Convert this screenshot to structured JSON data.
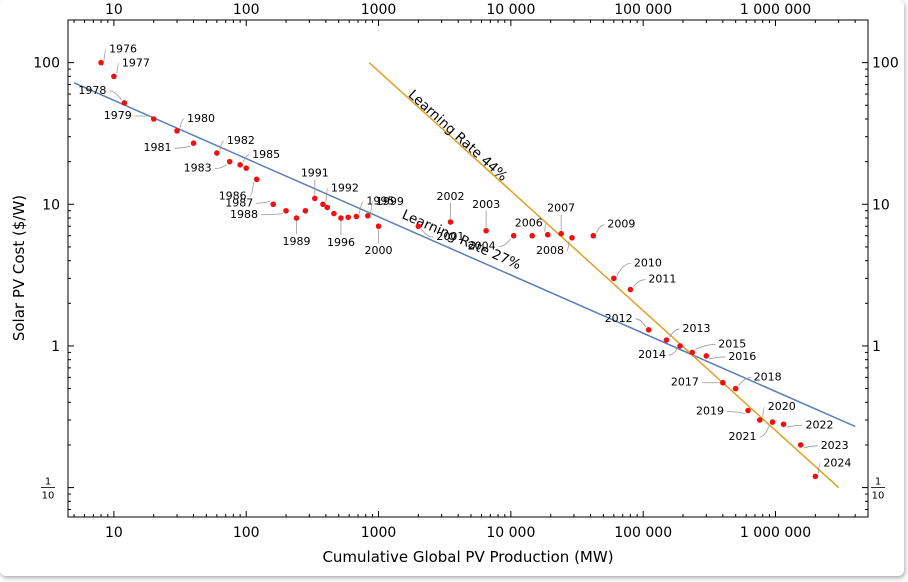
{
  "chart_data": {
    "type": "scatter",
    "xlabel": "Cumulative Global PV Production (MW)",
    "ylabel": "Solar PV Cost ($/W)",
    "x_scale": "log",
    "y_scale": "log",
    "xlim": [
      4.5,
      5000000
    ],
    "ylim": [
      0.062,
      200
    ],
    "x_ticks": [
      {
        "value": 10,
        "label": "10"
      },
      {
        "value": 100,
        "label": "100"
      },
      {
        "value": 1000,
        "label": "1000"
      },
      {
        "value": 10000,
        "label": "10 000"
      },
      {
        "value": 100000,
        "label": "100 000"
      },
      {
        "value": 1000000,
        "label": "1 000 000"
      }
    ],
    "y_ticks": [
      {
        "value": 100,
        "label": "100"
      },
      {
        "value": 10,
        "label": "10"
      },
      {
        "value": 1,
        "label": "1"
      },
      {
        "value": 0.1,
        "numerator": "1",
        "denominator": "10"
      }
    ],
    "point_color": "#ee1111",
    "points": [
      {
        "year": "1976",
        "x": 8,
        "y": 100
      },
      {
        "year": "1977",
        "x": 10,
        "y": 80
      },
      {
        "year": "1978",
        "x": 12,
        "y": 52
      },
      {
        "year": "1979",
        "x": 20,
        "y": 40
      },
      {
        "year": "1980",
        "x": 30,
        "y": 33
      },
      {
        "year": "1981",
        "x": 40,
        "y": 27
      },
      {
        "year": "1982",
        "x": 60,
        "y": 23
      },
      {
        "year": "1983",
        "x": 75,
        "y": 20
      },
      {
        "year": "1985",
        "x": 90,
        "y": 19
      },
      {
        "year": null,
        "x": 100,
        "y": 18
      },
      {
        "year": "1986",
        "x": 120,
        "y": 15
      },
      {
        "year": "1987",
        "x": 160,
        "y": 10
      },
      {
        "year": "1988",
        "x": 200,
        "y": 9
      },
      {
        "year": "1989",
        "x": 240,
        "y": 8
      },
      {
        "year": null,
        "x": 280,
        "y": 9
      },
      {
        "year": "1991",
        "x": 330,
        "y": 11
      },
      {
        "year": "1992",
        "x": 380,
        "y": 10
      },
      {
        "year": null,
        "x": 410,
        "y": 9.5
      },
      {
        "year": null,
        "x": 460,
        "y": 8.6
      },
      {
        "year": "1996",
        "x": 520,
        "y": 8
      },
      {
        "year": null,
        "x": 590,
        "y": 8.1
      },
      {
        "year": "1995",
        "x": 680,
        "y": 8.2
      },
      {
        "year": "1999",
        "x": 830,
        "y": 8.3
      },
      {
        "year": "2000",
        "x": 1000,
        "y": 7
      },
      {
        "year": "2001",
        "x": 2000,
        "y": 7
      },
      {
        "year": "2002",
        "x": 3500,
        "y": 7.5
      },
      {
        "year": "2003",
        "x": 6500,
        "y": 6.5
      },
      {
        "year": "2004",
        "x": 10500,
        "y": 6
      },
      {
        "year": null,
        "x": 14500,
        "y": 6
      },
      {
        "year": "2006",
        "x": 19000,
        "y": 6.1
      },
      {
        "year": "2007",
        "x": 24000,
        "y": 6.2
      },
      {
        "year": "2008",
        "x": 29000,
        "y": 5.8
      },
      {
        "year": "2009",
        "x": 42000,
        "y": 6
      },
      {
        "year": "2010",
        "x": 60000,
        "y": 3
      },
      {
        "year": "2011",
        "x": 80000,
        "y": 2.5
      },
      {
        "year": "2012",
        "x": 110000,
        "y": 1.3
      },
      {
        "year": "2013",
        "x": 150000,
        "y": 1.1
      },
      {
        "year": "2014",
        "x": 190000,
        "y": 1
      },
      {
        "year": "2015",
        "x": 235000,
        "y": 0.9
      },
      {
        "year": "2016",
        "x": 300000,
        "y": 0.85
      },
      {
        "year": "2017",
        "x": 400000,
        "y": 0.55
      },
      {
        "year": "2018",
        "x": 500000,
        "y": 0.5
      },
      {
        "year": "2019",
        "x": 620000,
        "y": 0.35
      },
      {
        "year": "2020",
        "x": 760000,
        "y": 0.3
      },
      {
        "year": "2021",
        "x": 950000,
        "y": 0.29
      },
      {
        "year": "2022",
        "x": 1150000,
        "y": 0.28
      },
      {
        "year": "2023",
        "x": 1550000,
        "y": 0.2
      },
      {
        "year": "2024",
        "x": 2000000,
        "y": 0.12
      }
    ],
    "trend_lines": [
      {
        "label": "Learning Rate 27%",
        "color": "#5b7fb5",
        "from": {
          "x": 5,
          "y": 72
        },
        "to": {
          "x": 4000000,
          "y": 0.27
        }
      },
      {
        "label": "Learning Rate 44%",
        "color": "#e0a020",
        "from": {
          "x": 850,
          "y": 100
        },
        "to": {
          "x": 3000000,
          "y": 0.1
        }
      }
    ]
  }
}
